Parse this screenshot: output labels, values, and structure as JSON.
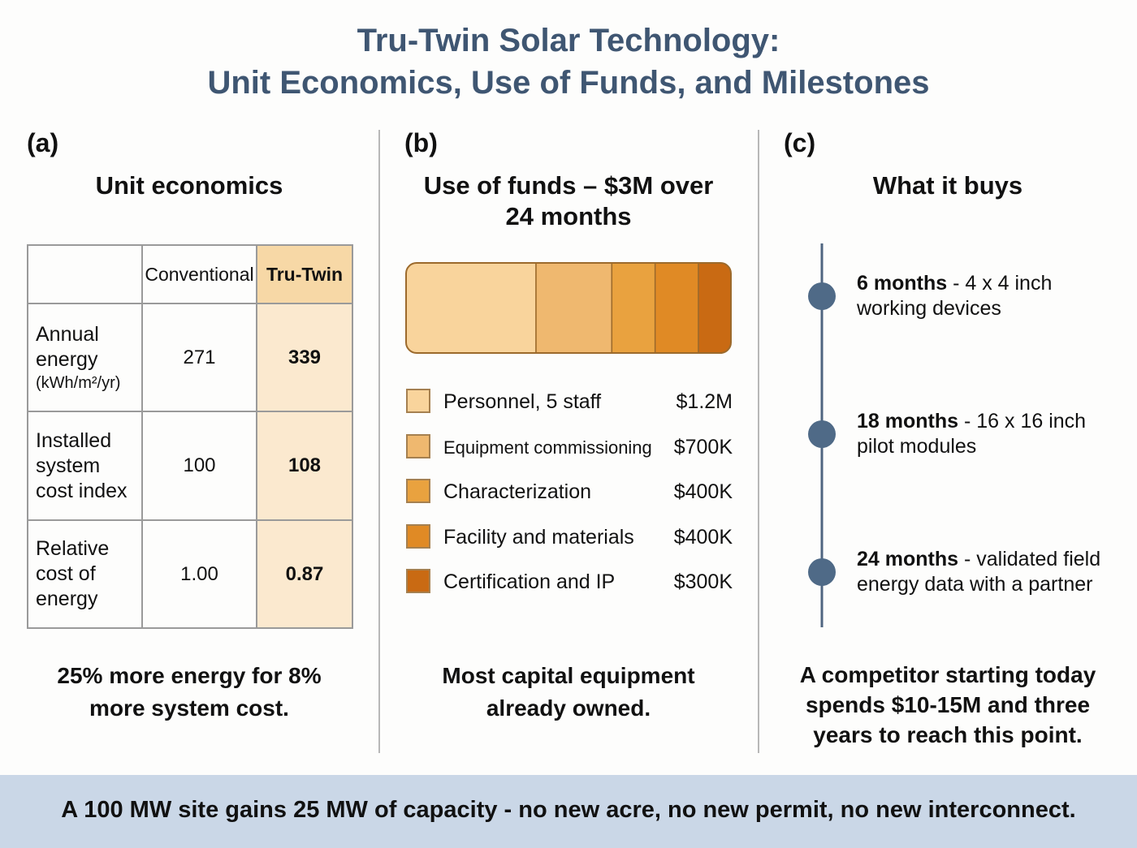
{
  "title": {
    "line1": "Tru-Twin Solar Technology:",
    "line2": "Unit Economics, Use of Funds, and Milestones"
  },
  "panel_a": {
    "label": "(a)",
    "heading": "Unit economics",
    "table": {
      "header": [
        "Conventional",
        "Tru-Twin"
      ],
      "rows": [
        {
          "label": "Annual energy",
          "unit": "(kWh/m²/yr)",
          "conventional": "271",
          "tru_twin": "339"
        },
        {
          "label": "Installed system cost index",
          "conventional": "100",
          "tru_twin": "108"
        },
        {
          "label": "Relative cost of energy",
          "conventional": "1.00",
          "tru_twin": "0.87"
        }
      ]
    },
    "note": "25% more energy for 8% more system cost."
  },
  "panel_b": {
    "label": "(b)",
    "heading": "Use of funds – $3M over 24 months",
    "note": "Most capital equipment already owned."
  },
  "chart_data": {
    "type": "stacked-bar",
    "categories": [
      "Personnel, 5 staff",
      "Equipment commissioning",
      "Characterization",
      "Facility and materials",
      "Certification and IP"
    ],
    "values": [
      1200000,
      700000,
      400000,
      400000,
      300000
    ],
    "value_labels": [
      "$1.2M",
      "$700K",
      "$400K",
      "$400K",
      "$300K"
    ],
    "colors": [
      "#f9d49c",
      "#efb86f",
      "#e9a23f",
      "#e08a25",
      "#c96a13"
    ]
  },
  "panel_c": {
    "label": "(c)",
    "heading": "What it buys",
    "milestones": [
      {
        "when": "6 months",
        "what": "- 4 x 4 inch working devices"
      },
      {
        "when": "18 months",
        "what": "- 16 x 16 inch pilot modules"
      },
      {
        "when": "24 months",
        "what": "- validated field energy data with a partner"
      }
    ],
    "note": "A competitor starting today spends $10-15M and three years to reach this point."
  },
  "footer": "A 100 MW site gains 25 MW of capacity - no new acre, no new permit, no new interconnect."
}
